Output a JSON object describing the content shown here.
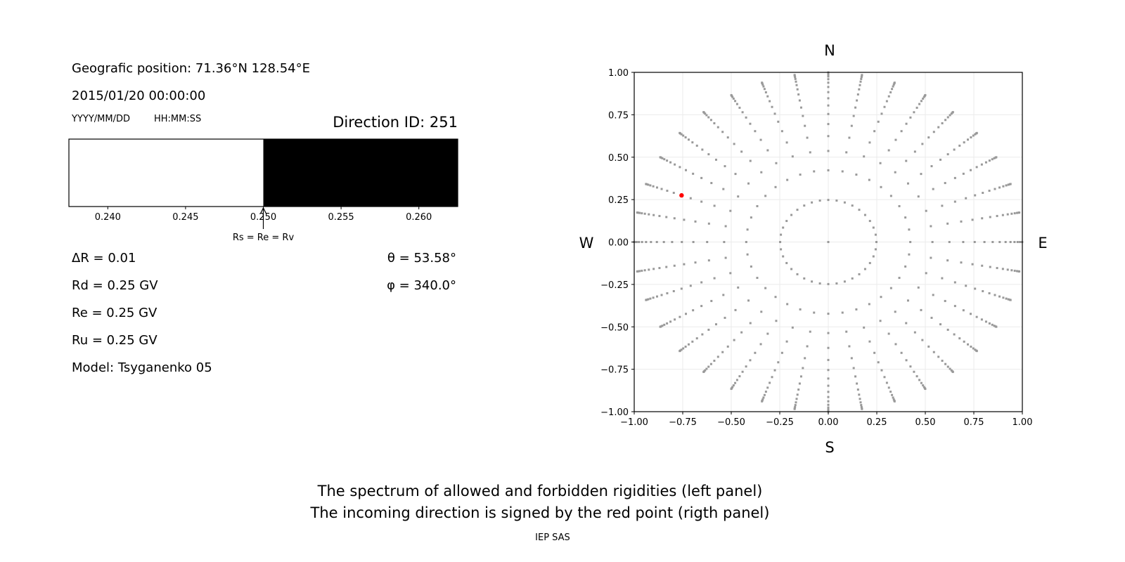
{
  "left_panel": {
    "position": "Geografic position: 71.36°N 128.54°E",
    "datetime": "2015/01/20 00:00:00",
    "date_format": "YYYY/MM/DD",
    "time_format": "HH:MM:SS",
    "direction_id": "Direction ID: 251",
    "delta_r": "ΔR = 0.01",
    "rd": "Rd = 0.25 GV",
    "re": "Re = 0.25 GV",
    "ru": "Ru = 0.25 GV",
    "model": "Model: Tsyganenko 05",
    "theta": "θ = 53.58°",
    "phi": "φ = 340.0°",
    "arrow_label": "Rs = Re = Rv"
  },
  "chart_data": [
    {
      "type": "bar",
      "description_of_marks": "rigidity spectrum: allowed (white) / forbidden (black)",
      "xlim": [
        0.2375,
        0.2625
      ],
      "xticks": [
        "0.240",
        "0.245",
        "0.250",
        "0.255",
        "0.260"
      ],
      "xtick_values": [
        0.24,
        0.245,
        0.25,
        0.255,
        0.26
      ],
      "segments": [
        {
          "from": 0.2375,
          "to": 0.25,
          "color": "#ffffff"
        },
        {
          "from": 0.25,
          "to": 0.2625,
          "color": "#000000"
        }
      ],
      "annotation": {
        "x": 0.25,
        "text": "Rs = Re = Rv"
      }
    },
    {
      "type": "scatter",
      "xlim": [
        -1,
        1
      ],
      "ylim": [
        -1,
        1
      ],
      "grid": true,
      "xticks": [
        "−1.00",
        "−0.75",
        "−0.50",
        "−0.25",
        "0.00",
        "0.25",
        "0.50",
        "0.75",
        "1.00"
      ],
      "yticks": [
        "−1.00",
        "−0.75",
        "−0.50",
        "−0.25",
        "0.00",
        "0.25",
        "0.50",
        "0.75",
        "1.00"
      ],
      "tick_values": [
        -1,
        -0.75,
        -0.5,
        -0.25,
        0,
        0.25,
        0.5,
        0.75,
        1
      ],
      "compass": {
        "north": "N",
        "south": "S",
        "west": "W",
        "east": "E"
      },
      "grid_points": {
        "center": [
          0,
          0
        ],
        "ring_radii": [
          0.248,
          0.4227,
          0.5367,
          0.6242,
          0.6953,
          0.7545,
          0.8047,
          0.8472,
          0.8833,
          0.9137,
          0.939,
          0.9597,
          0.9758,
          0.9877,
          0.9956,
          0.9995
        ],
        "azimuths_deg": [
          0,
          10,
          20,
          30,
          40,
          50,
          60,
          70,
          80,
          90,
          100,
          110,
          120,
          130,
          140,
          150,
          160,
          170,
          180,
          190,
          200,
          210,
          220,
          230,
          240,
          250,
          260,
          270,
          280,
          290,
          300,
          310,
          320,
          330,
          340,
          350
        ],
        "color": "#999999"
      },
      "highlight_point": {
        "x": -0.756,
        "y": 0.275,
        "color": "#ff0000"
      }
    }
  ],
  "footer": {
    "line1": "The spectrum of allowed and forbidden rigidities (left panel)",
    "line2": "The incoming direction is signed by the red point (rigth panel)",
    "credit": "IEP SAS"
  }
}
